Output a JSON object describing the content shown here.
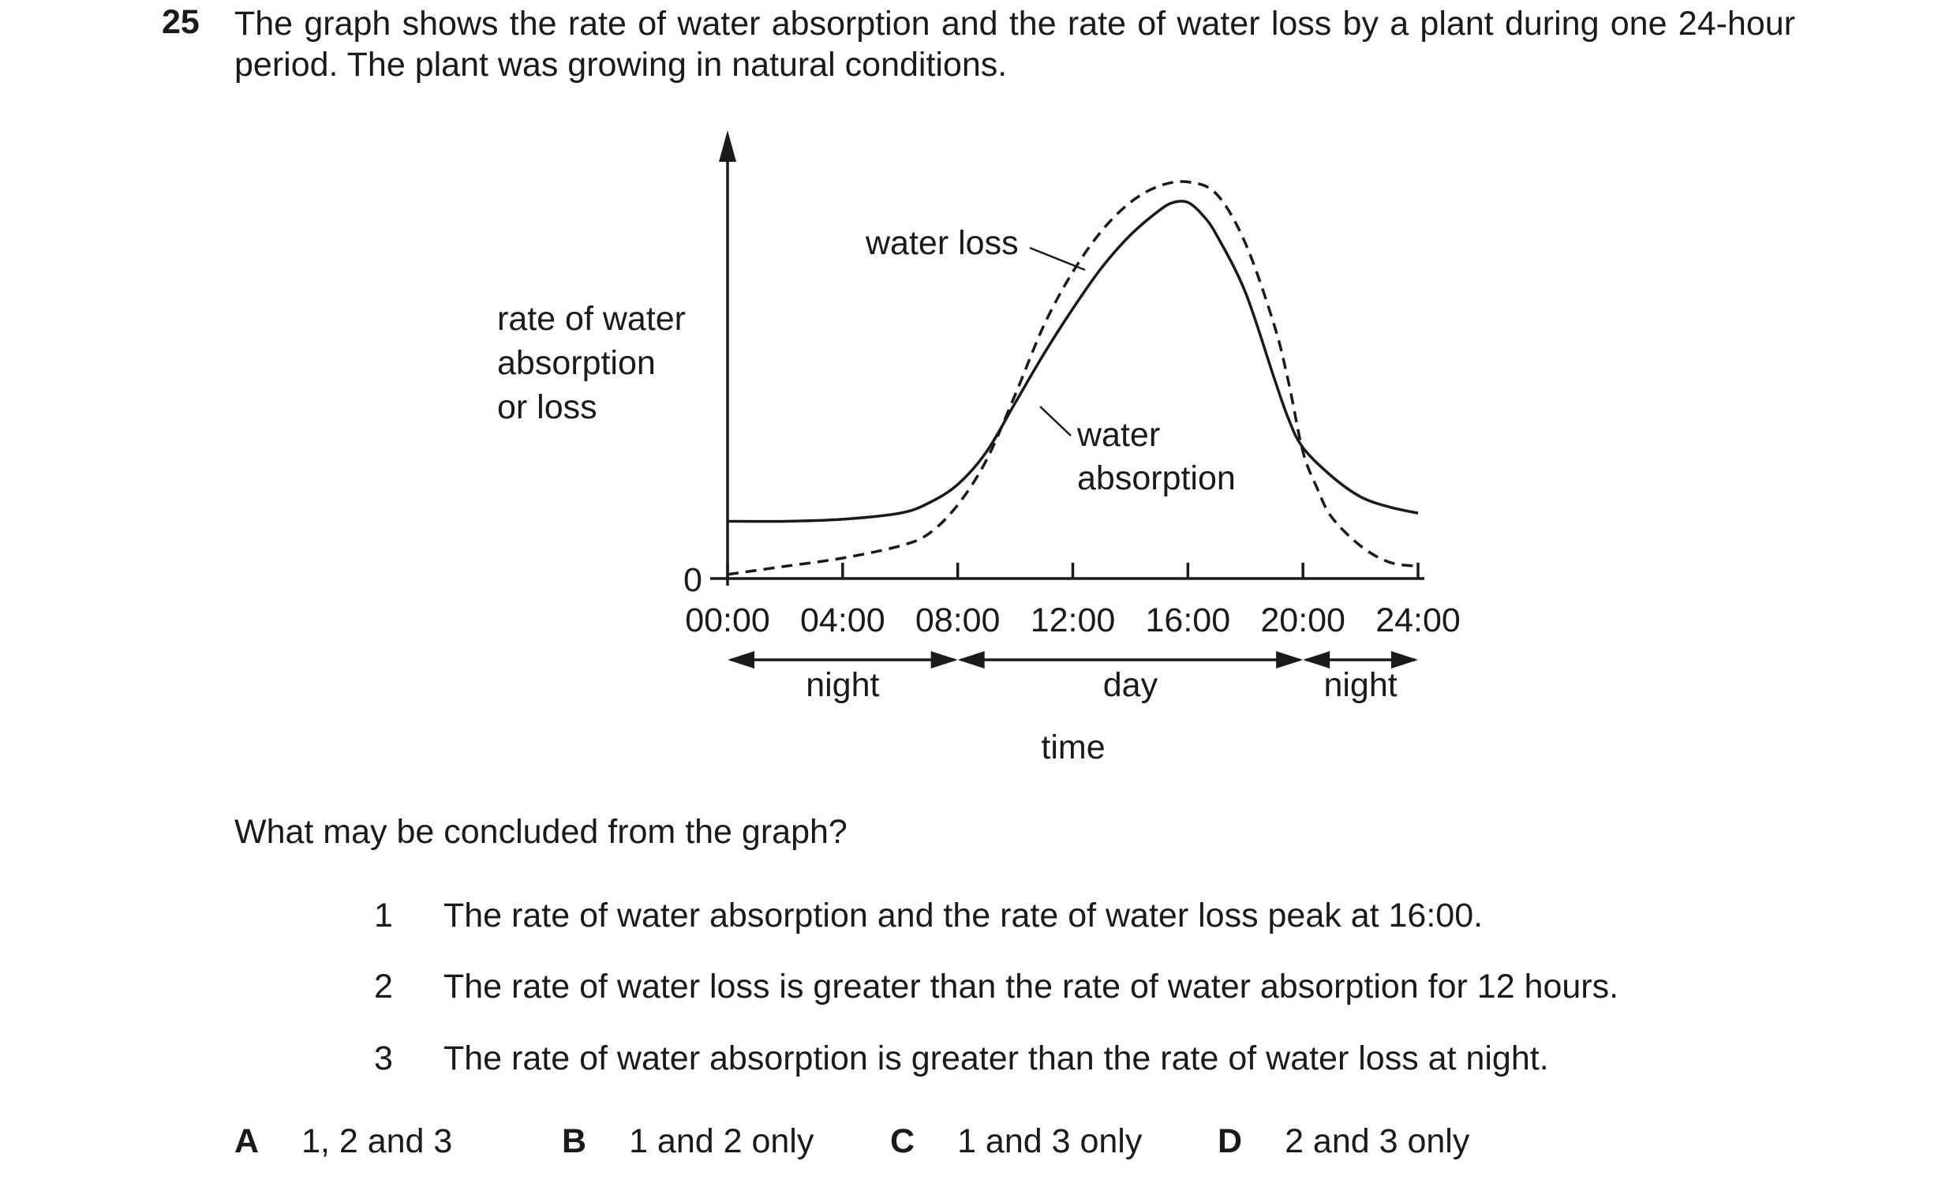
{
  "question": {
    "number": "25",
    "intro": "The graph shows the rate of water absorption and the rate of water loss by a plant during one 24-hour period. The plant was growing in natural conditions.",
    "prompt": "What may be concluded from the graph?",
    "statements": [
      {
        "num": "1",
        "text": "The rate of water absorption and the rate of water loss peak at 16:00."
      },
      {
        "num": "2",
        "text": "The rate of water loss is greater than the rate of water absorption for 12 hours."
      },
      {
        "num": "3",
        "text": "The rate of water absorption is greater than the rate of water loss at night."
      }
    ],
    "options": [
      {
        "letter": "A",
        "text": "1, 2 and 3"
      },
      {
        "letter": "B",
        "text": "1 and 2 only"
      },
      {
        "letter": "C",
        "text": "1 and 3 only"
      },
      {
        "letter": "D",
        "text": "2 and 3 only"
      }
    ]
  },
  "chart_data": {
    "type": "line",
    "ylabel_lines": [
      "rate of water",
      "absorption",
      "or loss"
    ],
    "xlabel": "time",
    "y_zero_label": "0",
    "x_tick_labels": [
      "00:00",
      "04:00",
      "08:00",
      "12:00",
      "16:00",
      "20:00",
      "24:00"
    ],
    "xlim": [
      0,
      24
    ],
    "periods": [
      {
        "label": "night",
        "from": 0,
        "to": 8
      },
      {
        "label": "day",
        "from": 8,
        "to": 20
      },
      {
        "label": "night",
        "from": 20,
        "to": 24
      }
    ],
    "series": [
      {
        "name": "water loss",
        "style": "dashed",
        "points": [
          [
            0,
            0.1
          ],
          [
            2,
            0.3
          ],
          [
            4,
            0.5
          ],
          [
            6,
            0.8
          ],
          [
            7,
            1.1
          ],
          [
            8,
            1.8
          ],
          [
            9,
            2.9
          ],
          [
            10,
            4.5
          ],
          [
            11,
            6.2
          ],
          [
            12,
            7.5
          ],
          [
            13,
            8.5
          ],
          [
            14,
            9.2
          ],
          [
            15,
            9.6
          ],
          [
            16,
            9.7
          ],
          [
            17,
            9.4
          ],
          [
            18,
            8.2
          ],
          [
            19,
            6.2
          ],
          [
            19.5,
            4.8
          ],
          [
            20,
            3.1
          ],
          [
            20.5,
            2.2
          ],
          [
            21,
            1.5
          ],
          [
            22,
            0.8
          ],
          [
            23,
            0.4
          ],
          [
            24,
            0.3
          ]
        ]
      },
      {
        "name": "water absorption",
        "style": "solid",
        "points": [
          [
            0,
            1.4
          ],
          [
            2,
            1.4
          ],
          [
            4,
            1.45
          ],
          [
            6,
            1.6
          ],
          [
            7,
            1.85
          ],
          [
            8,
            2.3
          ],
          [
            9,
            3.1
          ],
          [
            10,
            4.3
          ],
          [
            11,
            5.5
          ],
          [
            12,
            6.6
          ],
          [
            13,
            7.6
          ],
          [
            14,
            8.4
          ],
          [
            15,
            9.0
          ],
          [
            15.5,
            9.2
          ],
          [
            16,
            9.2
          ],
          [
            16.5,
            8.9
          ],
          [
            17,
            8.4
          ],
          [
            18,
            7.0
          ],
          [
            19,
            4.9
          ],
          [
            19.5,
            3.9
          ],
          [
            20,
            3.2
          ],
          [
            21,
            2.5
          ],
          [
            22,
            2.0
          ],
          [
            23,
            1.75
          ],
          [
            24,
            1.6
          ]
        ]
      }
    ]
  }
}
